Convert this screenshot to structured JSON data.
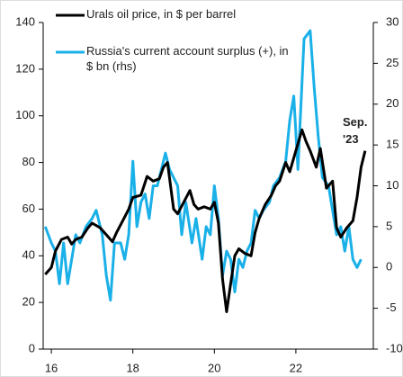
{
  "chart_data": {
    "type": "line",
    "xlim": [
      15.8,
      23.9
    ],
    "xticks": [
      16,
      18,
      20,
      22
    ],
    "ylim": [
      0,
      140
    ],
    "yticks": [
      0,
      20,
      40,
      60,
      80,
      100,
      120,
      140
    ],
    "y2lim": [
      -10,
      30
    ],
    "y2ticks": [
      -10,
      -5,
      0,
      5,
      10,
      15,
      20,
      25,
      30
    ],
    "annotation": "Sep. '23",
    "series": [
      {
        "name": "Urals oil price, in $ per barrel",
        "color": "#000000",
        "x": [
          15.85,
          16.0,
          16.1,
          16.25,
          16.4,
          16.5,
          16.6,
          16.75,
          16.9,
          17.0,
          17.2,
          17.4,
          17.5,
          17.6,
          17.75,
          17.9,
          18.0,
          18.2,
          18.35,
          18.5,
          18.65,
          18.75,
          18.85,
          19.0,
          19.1,
          19.25,
          19.4,
          19.5,
          19.6,
          19.75,
          19.9,
          20.0,
          20.1,
          20.2,
          20.3,
          20.4,
          20.5,
          20.6,
          20.75,
          20.9,
          21.0,
          21.1,
          21.25,
          21.4,
          21.5,
          21.6,
          21.75,
          21.85,
          22.0,
          22.15,
          22.25,
          22.35,
          22.5,
          22.6,
          22.75,
          22.9,
          23.0,
          23.1,
          23.25,
          23.4,
          23.5,
          23.6,
          23.7
        ],
        "values": [
          32,
          35,
          42,
          47,
          48,
          45,
          47,
          48,
          52,
          54,
          52,
          48,
          46,
          50,
          55,
          60,
          65,
          66,
          74,
          72,
          73,
          78,
          80,
          60,
          58,
          63,
          68,
          62,
          60,
          61,
          60,
          63,
          54,
          30,
          16,
          28,
          40,
          43,
          41,
          40,
          50,
          56,
          62,
          66,
          70,
          72,
          80,
          76,
          85,
          94,
          89,
          85,
          78,
          86,
          69,
          72,
          52,
          48,
          52,
          55,
          65,
          78,
          85
        ]
      },
      {
        "name": "Russia's current account surplus (+), in $ bn (rhs)",
        "color": "#1ab0e8",
        "axis": "y2",
        "x": [
          15.85,
          16.0,
          16.1,
          16.2,
          16.3,
          16.4,
          16.5,
          16.6,
          16.7,
          16.85,
          17.0,
          17.1,
          17.25,
          17.35,
          17.45,
          17.55,
          17.7,
          17.8,
          17.9,
          18.0,
          18.1,
          18.2,
          18.3,
          18.4,
          18.5,
          18.6,
          18.7,
          18.8,
          18.9,
          19.0,
          19.1,
          19.2,
          19.3,
          19.45,
          19.55,
          19.7,
          19.8,
          19.9,
          20.0,
          20.1,
          20.2,
          20.3,
          20.4,
          20.5,
          20.6,
          20.7,
          20.8,
          20.9,
          21.0,
          21.1,
          21.2,
          21.35,
          21.45,
          21.6,
          21.75,
          21.85,
          21.95,
          22.05,
          22.2,
          22.35,
          22.45,
          22.55,
          22.65,
          22.8,
          22.9,
          23.0,
          23.1,
          23.2,
          23.3,
          23.4,
          23.5,
          23.6
        ],
        "values": [
          5,
          3,
          2,
          -2,
          3,
          -2,
          1,
          4,
          3,
          5,
          6,
          7,
          4,
          -1,
          -4,
          3,
          3,
          1,
          4,
          13,
          5,
          8,
          9,
          6,
          10,
          10,
          12,
          14,
          12,
          11,
          10,
          4,
          8,
          3,
          6,
          1,
          5,
          4,
          10,
          6,
          -1,
          2,
          1,
          -3,
          1,
          0,
          2,
          3,
          7,
          6,
          7,
          8,
          10,
          11,
          13,
          18,
          21,
          12,
          28,
          29,
          22,
          16,
          11,
          10,
          7,
          4,
          5,
          2,
          5,
          1,
          0,
          1
        ]
      }
    ]
  }
}
